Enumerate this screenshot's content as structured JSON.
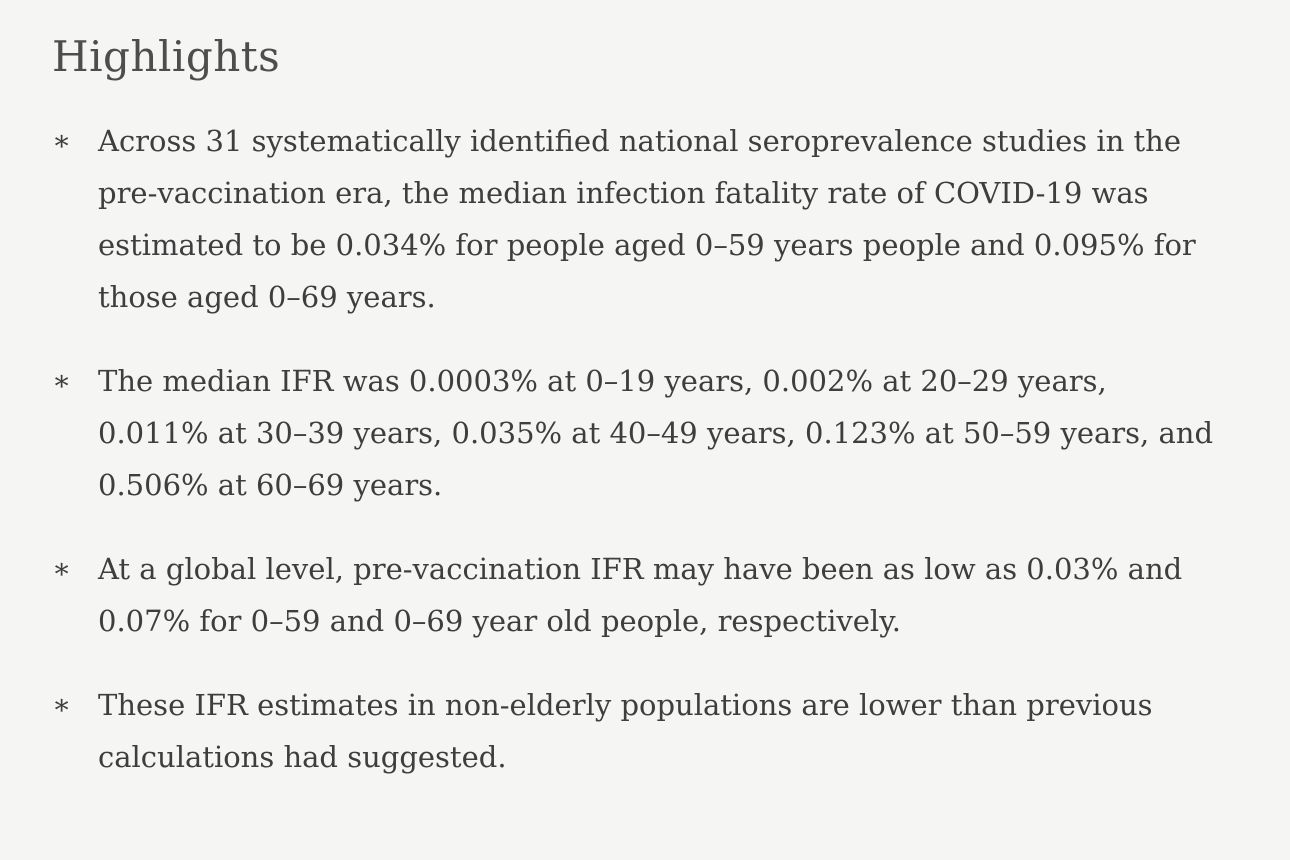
{
  "page": {
    "background_color": "#f5f5f4",
    "body_text_color": "#3e3e3e",
    "heading_color": "#4d4d4d"
  },
  "highlights": {
    "title": "Highlights",
    "bullet_glyph": "∗",
    "items": [
      {
        "text": "Across 31 systematically identified national seroprevalence studies in the\npre-vaccination era, the median infection fatality rate of COVID-19 was\nestimated to be 0.034% for people aged 0–59 years people and 0.095% for\nthose aged 0–69 years."
      },
      {
        "text": "The median IFR was 0.0003% at 0–19 years, 0.002% at 20–29 years,\n0.011% at 30–39 years, 0.035% at 40–49 years, 0.123% at 50–59 years, and\n0.506% at 60–69 years."
      },
      {
        "text": "At a global level, pre-vaccination IFR may have been as low as 0.03% and\n0.07% for 0–59 and 0–69 year old people, respectively."
      },
      {
        "text": "These IFR estimates in non-elderly populations are lower than previous\ncalculations had suggested."
      }
    ]
  }
}
